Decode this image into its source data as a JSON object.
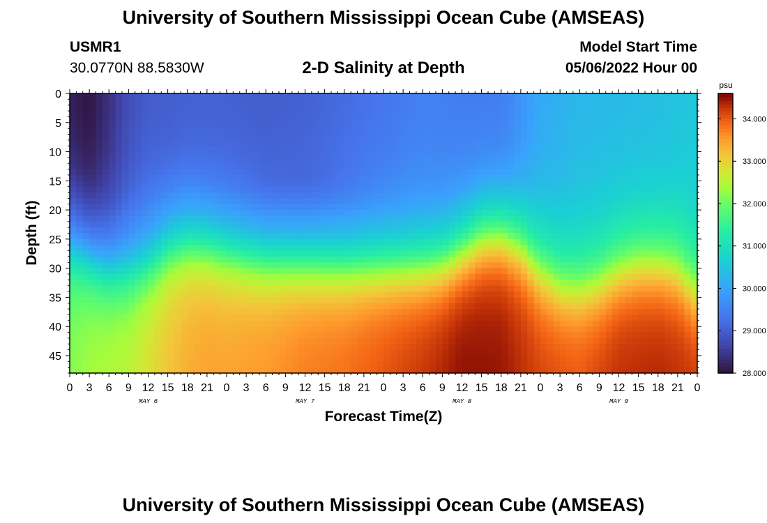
{
  "header": {
    "title": "University of Southern Mississippi Ocean Cube (AMSEAS)",
    "station_id": "USMR1",
    "coordinates": "30.0770N  88.5830W",
    "subtitle": "2-D Salinity at Depth",
    "model_start_label": "Model Start Time",
    "model_start_value": "05/06/2022 Hour 00"
  },
  "footer": {
    "title": "University of Southern Mississippi Ocean Cube (AMSEAS)"
  },
  "chart_data": {
    "type": "heatmap",
    "title": "2-D Salinity at Depth",
    "xlabel": "Forecast Time(Z)",
    "ylabel": "Depth (ft)",
    "x_ticks": [
      "0",
      "3",
      "6",
      "9",
      "12",
      "15",
      "18",
      "21",
      "0",
      "3",
      "6",
      "9",
      "12",
      "15",
      "18",
      "21",
      "0",
      "3",
      "6",
      "9",
      "12",
      "15",
      "18",
      "21",
      "0",
      "3",
      "6",
      "9",
      "12",
      "15",
      "18",
      "21",
      "0"
    ],
    "x_hours_range": [
      0,
      96
    ],
    "day_labels": [
      {
        "label": "MAY 6",
        "hour": 12
      },
      {
        "label": "MAY 7",
        "hour": 36
      },
      {
        "label": "MAY 8",
        "hour": 60
      },
      {
        "label": "MAY 9",
        "hour": 84
      }
    ],
    "y_ticks": [
      "0",
      "5",
      "10",
      "15",
      "20",
      "25",
      "30",
      "35",
      "40",
      "45"
    ],
    "ylim": [
      0,
      48
    ],
    "colorbar": {
      "unit": "psu",
      "min": 28.0,
      "max": 34.6,
      "tick_values": [
        28,
        29,
        30,
        31,
        32,
        33,
        34
      ],
      "tick_labels": [
        "28.000",
        "29.000",
        "30.000",
        "31.000",
        "32.000",
        "33.000",
        "34.000"
      ]
    },
    "halocline_depth_ft": {
      "hours": [
        0,
        3,
        6,
        9,
        12,
        15,
        18,
        21,
        24,
        30,
        36,
        42,
        48,
        54,
        57,
        60,
        63,
        66,
        69,
        72,
        75,
        78,
        81,
        84,
        87,
        90,
        93,
        96
      ],
      "depth": [
        25,
        27,
        29,
        29,
        28,
        25.5,
        24.5,
        25,
        26,
        27.5,
        28,
        28.5,
        28.5,
        28.5,
        28,
        26,
        23.5,
        23,
        25,
        29,
        31.5,
        32,
        31,
        29,
        28,
        28,
        29,
        33
      ]
    },
    "surface_salinity_psu": {
      "hours": [
        0,
        3,
        6,
        9,
        12,
        15,
        18,
        24,
        30,
        36,
        42,
        48,
        54,
        60,
        66,
        72,
        78,
        84,
        90,
        96
      ],
      "values": [
        28.2,
        28.05,
        28.4,
        28.8,
        29.0,
        29.0,
        29.05,
        29.05,
        29.0,
        29.05,
        29.2,
        29.35,
        29.5,
        29.45,
        29.45,
        30.1,
        30.3,
        30.35,
        30.4,
        30.55
      ]
    },
    "bottom_salinity_psu": {
      "hours": [
        0,
        3,
        6,
        9,
        12,
        15,
        18,
        21,
        24,
        30,
        36,
        42,
        48,
        54,
        60,
        66,
        72,
        78,
        84,
        90,
        96
      ],
      "values": [
        32.2,
        32.4,
        32.5,
        32.6,
        32.9,
        33.2,
        33.4,
        33.5,
        33.5,
        33.6,
        33.8,
        33.9,
        34.1,
        34.3,
        34.55,
        34.5,
        34.2,
        34.1,
        34.35,
        34.4,
        34.3
      ]
    }
  }
}
